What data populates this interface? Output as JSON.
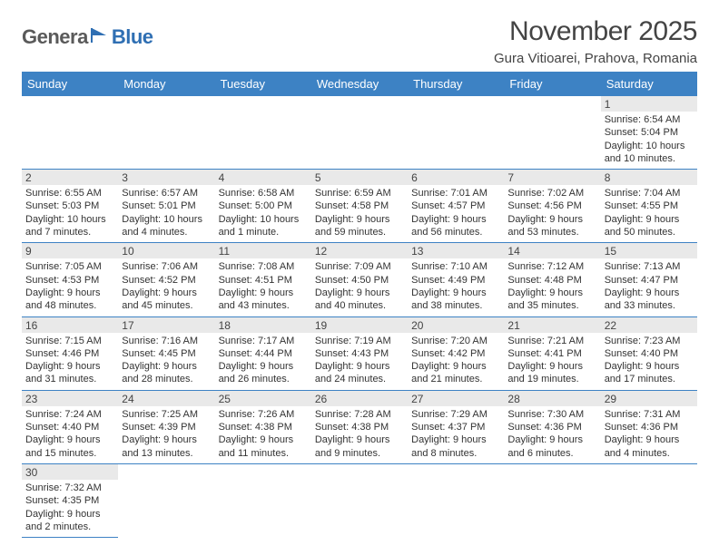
{
  "logo": {
    "part1": "Genera",
    "part2": "Blue"
  },
  "title": "November 2025",
  "location": "Gura Vitioarei, Prahova, Romania",
  "colors": {
    "header_bg": "#3d82c4",
    "header_fg": "#ffffff",
    "daynum_bg": "#e9e9e9",
    "border": "#3d82c4",
    "logo_gray": "#5a5a5a",
    "logo_blue": "#2f6fb3"
  },
  "weekdays": [
    "Sunday",
    "Monday",
    "Tuesday",
    "Wednesday",
    "Thursday",
    "Friday",
    "Saturday"
  ],
  "cells": [
    {
      "day": "",
      "sunrise": "",
      "sunset": "",
      "daylight": ""
    },
    {
      "day": "",
      "sunrise": "",
      "sunset": "",
      "daylight": ""
    },
    {
      "day": "",
      "sunrise": "",
      "sunset": "",
      "daylight": ""
    },
    {
      "day": "",
      "sunrise": "",
      "sunset": "",
      "daylight": ""
    },
    {
      "day": "",
      "sunrise": "",
      "sunset": "",
      "daylight": ""
    },
    {
      "day": "",
      "sunrise": "",
      "sunset": "",
      "daylight": ""
    },
    {
      "day": "1",
      "sunrise": "Sunrise: 6:54 AM",
      "sunset": "Sunset: 5:04 PM",
      "daylight": "Daylight: 10 hours and 10 minutes."
    },
    {
      "day": "2",
      "sunrise": "Sunrise: 6:55 AM",
      "sunset": "Sunset: 5:03 PM",
      "daylight": "Daylight: 10 hours and 7 minutes."
    },
    {
      "day": "3",
      "sunrise": "Sunrise: 6:57 AM",
      "sunset": "Sunset: 5:01 PM",
      "daylight": "Daylight: 10 hours and 4 minutes."
    },
    {
      "day": "4",
      "sunrise": "Sunrise: 6:58 AM",
      "sunset": "Sunset: 5:00 PM",
      "daylight": "Daylight: 10 hours and 1 minute."
    },
    {
      "day": "5",
      "sunrise": "Sunrise: 6:59 AM",
      "sunset": "Sunset: 4:58 PM",
      "daylight": "Daylight: 9 hours and 59 minutes."
    },
    {
      "day": "6",
      "sunrise": "Sunrise: 7:01 AM",
      "sunset": "Sunset: 4:57 PM",
      "daylight": "Daylight: 9 hours and 56 minutes."
    },
    {
      "day": "7",
      "sunrise": "Sunrise: 7:02 AM",
      "sunset": "Sunset: 4:56 PM",
      "daylight": "Daylight: 9 hours and 53 minutes."
    },
    {
      "day": "8",
      "sunrise": "Sunrise: 7:04 AM",
      "sunset": "Sunset: 4:55 PM",
      "daylight": "Daylight: 9 hours and 50 minutes."
    },
    {
      "day": "9",
      "sunrise": "Sunrise: 7:05 AM",
      "sunset": "Sunset: 4:53 PM",
      "daylight": "Daylight: 9 hours and 48 minutes."
    },
    {
      "day": "10",
      "sunrise": "Sunrise: 7:06 AM",
      "sunset": "Sunset: 4:52 PM",
      "daylight": "Daylight: 9 hours and 45 minutes."
    },
    {
      "day": "11",
      "sunrise": "Sunrise: 7:08 AM",
      "sunset": "Sunset: 4:51 PM",
      "daylight": "Daylight: 9 hours and 43 minutes."
    },
    {
      "day": "12",
      "sunrise": "Sunrise: 7:09 AM",
      "sunset": "Sunset: 4:50 PM",
      "daylight": "Daylight: 9 hours and 40 minutes."
    },
    {
      "day": "13",
      "sunrise": "Sunrise: 7:10 AM",
      "sunset": "Sunset: 4:49 PM",
      "daylight": "Daylight: 9 hours and 38 minutes."
    },
    {
      "day": "14",
      "sunrise": "Sunrise: 7:12 AM",
      "sunset": "Sunset: 4:48 PM",
      "daylight": "Daylight: 9 hours and 35 minutes."
    },
    {
      "day": "15",
      "sunrise": "Sunrise: 7:13 AM",
      "sunset": "Sunset: 4:47 PM",
      "daylight": "Daylight: 9 hours and 33 minutes."
    },
    {
      "day": "16",
      "sunrise": "Sunrise: 7:15 AM",
      "sunset": "Sunset: 4:46 PM",
      "daylight": "Daylight: 9 hours and 31 minutes."
    },
    {
      "day": "17",
      "sunrise": "Sunrise: 7:16 AM",
      "sunset": "Sunset: 4:45 PM",
      "daylight": "Daylight: 9 hours and 28 minutes."
    },
    {
      "day": "18",
      "sunrise": "Sunrise: 7:17 AM",
      "sunset": "Sunset: 4:44 PM",
      "daylight": "Daylight: 9 hours and 26 minutes."
    },
    {
      "day": "19",
      "sunrise": "Sunrise: 7:19 AM",
      "sunset": "Sunset: 4:43 PM",
      "daylight": "Daylight: 9 hours and 24 minutes."
    },
    {
      "day": "20",
      "sunrise": "Sunrise: 7:20 AM",
      "sunset": "Sunset: 4:42 PM",
      "daylight": "Daylight: 9 hours and 21 minutes."
    },
    {
      "day": "21",
      "sunrise": "Sunrise: 7:21 AM",
      "sunset": "Sunset: 4:41 PM",
      "daylight": "Daylight: 9 hours and 19 minutes."
    },
    {
      "day": "22",
      "sunrise": "Sunrise: 7:23 AM",
      "sunset": "Sunset: 4:40 PM",
      "daylight": "Daylight: 9 hours and 17 minutes."
    },
    {
      "day": "23",
      "sunrise": "Sunrise: 7:24 AM",
      "sunset": "Sunset: 4:40 PM",
      "daylight": "Daylight: 9 hours and 15 minutes."
    },
    {
      "day": "24",
      "sunrise": "Sunrise: 7:25 AM",
      "sunset": "Sunset: 4:39 PM",
      "daylight": "Daylight: 9 hours and 13 minutes."
    },
    {
      "day": "25",
      "sunrise": "Sunrise: 7:26 AM",
      "sunset": "Sunset: 4:38 PM",
      "daylight": "Daylight: 9 hours and 11 minutes."
    },
    {
      "day": "26",
      "sunrise": "Sunrise: 7:28 AM",
      "sunset": "Sunset: 4:38 PM",
      "daylight": "Daylight: 9 hours and 9 minutes."
    },
    {
      "day": "27",
      "sunrise": "Sunrise: 7:29 AM",
      "sunset": "Sunset: 4:37 PM",
      "daylight": "Daylight: 9 hours and 8 minutes."
    },
    {
      "day": "28",
      "sunrise": "Sunrise: 7:30 AM",
      "sunset": "Sunset: 4:36 PM",
      "daylight": "Daylight: 9 hours and 6 minutes."
    },
    {
      "day": "29",
      "sunrise": "Sunrise: 7:31 AM",
      "sunset": "Sunset: 4:36 PM",
      "daylight": "Daylight: 9 hours and 4 minutes."
    },
    {
      "day": "30",
      "sunrise": "Sunrise: 7:32 AM",
      "sunset": "Sunset: 4:35 PM",
      "daylight": "Daylight: 9 hours and 2 minutes."
    },
    {
      "day": "",
      "sunrise": "",
      "sunset": "",
      "daylight": ""
    },
    {
      "day": "",
      "sunrise": "",
      "sunset": "",
      "daylight": ""
    },
    {
      "day": "",
      "sunrise": "",
      "sunset": "",
      "daylight": ""
    },
    {
      "day": "",
      "sunrise": "",
      "sunset": "",
      "daylight": ""
    },
    {
      "day": "",
      "sunrise": "",
      "sunset": "",
      "daylight": ""
    },
    {
      "day": "",
      "sunrise": "",
      "sunset": "",
      "daylight": ""
    }
  ]
}
